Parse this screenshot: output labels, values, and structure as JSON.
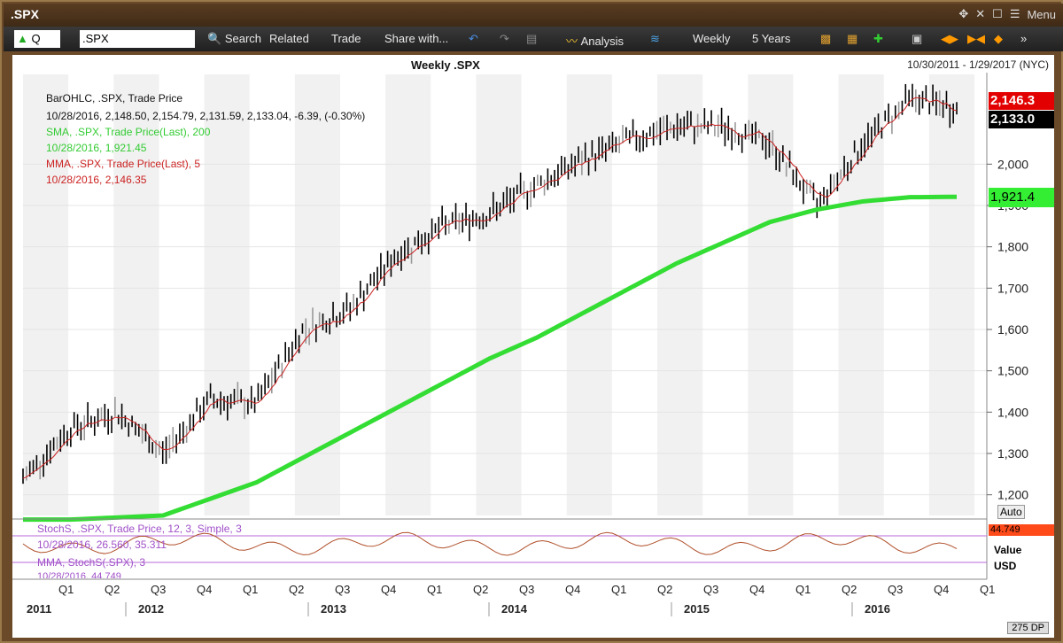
{
  "window": {
    "title": ".SPX",
    "menu_label": "Menu"
  },
  "toolbar": {
    "ticker_field": "Q",
    "symbol": ".SPX",
    "search": "Search",
    "related": "Related",
    "trade": "Trade",
    "share": "Share with...",
    "analysis": "Analysis",
    "period": "Weekly",
    "span": "5 Years"
  },
  "chart": {
    "title": "Weekly .SPX",
    "date_range": "10/30/2011 - 1/29/2017 (NYC)",
    "legend": {
      "bar_header": "BarOHLC, .SPX, Trade Price",
      "bar_values": "10/28/2016, 2,148.50, 2,154.79, 2,131.59, 2,133.04, -6.39, (-0.30%)",
      "sma_header": "SMA, .SPX, Trade Price(Last), 200",
      "sma_values": "10/28/2016, 1,921.45",
      "mma_header": "MMA, .SPX, Trade Price(Last), 5",
      "mma_values": "10/28/2016, 2,146.35"
    },
    "price_tags": {
      "mma": "2,146.3",
      "last": "2,133.0",
      "sma": "1,921.4"
    },
    "auto_label": "Auto",
    "y_ticks": [
      "2,000",
      "1,900",
      "1,800",
      "1,700",
      "1,600",
      "1,500",
      "1,400",
      "1,300",
      "1,200"
    ],
    "quarters": [
      "Q1",
      "Q2",
      "Q3",
      "Q4",
      "Q1",
      "Q2",
      "Q3",
      "Q4",
      "Q1",
      "Q2",
      "Q3",
      "Q4",
      "Q1",
      "Q2",
      "Q3",
      "Q4",
      "Q1",
      "Q2",
      "Q3",
      "Q4",
      "Q1"
    ],
    "years": [
      "2011",
      "2012",
      "2013",
      "2014",
      "2015",
      "2016"
    ],
    "status": "275 DP"
  },
  "indicator": {
    "stoch_header": "StochS, .SPX, Trade Price, 12, 3, Simple, 3",
    "stoch_values": "10/28/2016, 26.560, 35.311",
    "mma_header": "MMA, StochS(.SPX), 3",
    "cut_line": "10/28/2016, 44.749",
    "value_tag": "44.749",
    "value_label": "Value",
    "usd_label": "USD"
  },
  "colors": {
    "sma": "#33dd33",
    "mma": "#cc2222",
    "stoch": "#b86ad8",
    "bars": "#000000"
  },
  "chart_data": {
    "type": "line",
    "title": "Weekly .SPX",
    "ylim": [
      1150,
      2200
    ],
    "x": [
      "2011 Q4",
      "2012 Q1",
      "2012 Q2",
      "2012 Q3",
      "2012 Q4",
      "2013 Q1",
      "2013 Q2",
      "2013 Q3",
      "2013 Q4",
      "2014 Q1",
      "2014 Q2",
      "2014 Q3",
      "2014 Q4",
      "2015 Q1",
      "2015 Q2",
      "2015 Q3",
      "2015 Q4",
      "2016 Q1",
      "2016 Q2",
      "2016 Q3",
      "2016 Q4"
    ],
    "series": [
      {
        "name": "BarOHLC",
        "values": [
          1240,
          1360,
          1400,
          1300,
          1430,
          1420,
          1600,
          1650,
          1780,
          1850,
          1880,
          1950,
          2010,
          2060,
          2090,
          2090,
          2050,
          1900,
          2050,
          2160,
          2133
        ]
      },
      {
        "name": "SMA",
        "values": [
          1140,
          1140,
          1145,
          1150,
          1190,
          1230,
          1290,
          1350,
          1410,
          1470,
          1530,
          1580,
          1640,
          1700,
          1760,
          1810,
          1860,
          1890,
          1910,
          1920,
          1921
        ]
      }
    ]
  }
}
